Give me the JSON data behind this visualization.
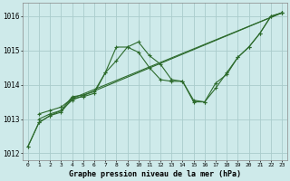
{
  "xlabel": "Graphe pression niveau de la mer (hPa)",
  "background_color": "#ceeaea",
  "grid_color": "#aacccc",
  "line_color": "#2d6b2d",
  "xlim": [
    -0.5,
    23.5
  ],
  "ylim": [
    1011.8,
    1016.4
  ],
  "xticks": [
    0,
    1,
    2,
    3,
    4,
    5,
    6,
    7,
    8,
    9,
    10,
    11,
    12,
    13,
    14,
    15,
    16,
    17,
    18,
    19,
    20,
    21,
    22,
    23
  ],
  "yticks": [
    1012,
    1013,
    1014,
    1015,
    1016
  ],
  "series": [
    {
      "x": [
        0,
        1,
        2,
        3,
        4,
        5,
        6,
        7,
        8,
        9,
        10,
        11,
        12,
        13,
        14,
        15,
        16,
        17,
        18,
        19,
        20,
        21,
        22,
        23
      ],
      "y": [
        1012.2,
        1012.9,
        1013.1,
        1013.2,
        1013.6,
        1013.65,
        1013.75,
        1014.35,
        1015.1,
        1015.1,
        1014.95,
        1014.5,
        1014.15,
        1014.1,
        1014.1,
        1013.55,
        1013.5,
        1014.05,
        1014.3,
        1014.8,
        1015.1,
        1015.5,
        1016.0,
        1016.1
      ]
    },
    {
      "x": [
        0,
        1,
        2,
        3,
        4,
        5,
        6,
        7,
        8,
        9,
        10,
        11,
        12,
        13,
        14,
        15,
        16,
        17,
        18,
        19,
        20,
        21,
        22,
        23
      ],
      "y": [
        1012.2,
        1012.9,
        1013.1,
        1013.25,
        1013.65,
        1013.7,
        1013.8,
        1014.35,
        1014.7,
        1015.1,
        1015.25,
        1014.85,
        1014.6,
        1014.15,
        1014.1,
        1013.5,
        1013.5,
        1013.9,
        1014.35,
        1014.8,
        1015.1,
        1015.5,
        1016.0,
        1016.1
      ]
    },
    {
      "x": [
        1,
        2,
        3,
        4,
        23
      ],
      "y": [
        1013.0,
        1013.15,
        1013.25,
        1013.55,
        1016.1
      ]
    },
    {
      "x": [
        1,
        2,
        3,
        4,
        23
      ],
      "y": [
        1013.15,
        1013.25,
        1013.35,
        1013.6,
        1016.1
      ]
    }
  ]
}
